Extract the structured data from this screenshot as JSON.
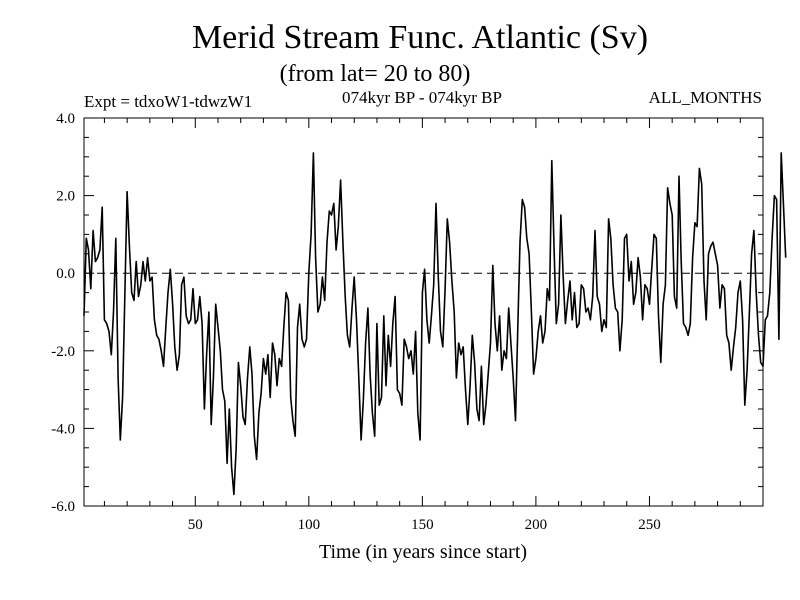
{
  "chart_data": {
    "type": "line",
    "title": "Merid Stream Func. Atlantic (Sv)",
    "subtitle": "(from lat= 20 to 80)",
    "annotations": {
      "experiment": "Expt = tdxoW1-tdwzW1",
      "period": "074kyr BP - 074kyr BP",
      "months": "ALL_MONTHS"
    },
    "xlabel": "Time (in years since start)",
    "ylabel": "",
    "xlim": [
      1,
      300
    ],
    "ylim": [
      -6.0,
      4.0
    ],
    "x_ticks": [
      50,
      100,
      150,
      200,
      250
    ],
    "x_tick_labels": [
      "50",
      "100",
      "150",
      "200",
      "250"
    ],
    "y_ticks": [
      -6.0,
      -4.0,
      -2.0,
      0.0,
      2.0,
      4.0
    ],
    "y_tick_labels": [
      "-6.0",
      "-4.0",
      "-2.0",
      "0.0",
      "2.0",
      "4.0"
    ],
    "reference_line": {
      "y": 0.0,
      "style": "dashed"
    },
    "series": [
      {
        "name": "Merid Stream Func. Atlantic",
        "x_start": 1,
        "x_step": 1,
        "values": [
          -1.1,
          0.9,
          0.6,
          -0.4,
          1.1,
          0.3,
          0.4,
          0.6,
          1.7,
          -1.2,
          -1.3,
          -1.5,
          -2.1,
          -1.0,
          0.9,
          -2.7,
          -4.3,
          -3.2,
          -0.5,
          2.1,
          0.7,
          -0.5,
          -0.7,
          0.3,
          -0.6,
          -0.3,
          0.3,
          -0.2,
          0.4,
          -0.2,
          -0.1,
          -1.2,
          -1.6,
          -1.7,
          -2.0,
          -2.4,
          -1.4,
          -0.5,
          0.1,
          -0.8,
          -1.9,
          -2.5,
          -2.1,
          -0.3,
          -0.1,
          -1.1,
          -1.3,
          -1.2,
          -0.4,
          -1.3,
          -1.2,
          -0.6,
          -1.3,
          -3.5,
          -2.1,
          -1.0,
          -3.9,
          -2.7,
          -0.8,
          -1.4,
          -2.0,
          -3.0,
          -3.3,
          -4.9,
          -3.5,
          -5.0,
          -5.7,
          -4.5,
          -2.3,
          -2.9,
          -3.7,
          -3.9,
          -2.7,
          -1.9,
          -2.6,
          -4.2,
          -4.8,
          -3.6,
          -3.1,
          -2.2,
          -2.6,
          -2.1,
          -3.2,
          -1.8,
          -2.1,
          -2.9,
          -2.2,
          -2.4,
          -1.4,
          -0.5,
          -0.7,
          -3.2,
          -3.8,
          -4.2,
          -1.4,
          -0.8,
          -1.7,
          -1.9,
          -1.7,
          0.0,
          1.0,
          3.1,
          0.4,
          -1.0,
          -0.8,
          -0.1,
          -0.7,
          0.8,
          1.6,
          1.5,
          1.8,
          0.6,
          1.2,
          2.4,
          0.8,
          -0.6,
          -1.6,
          -1.9,
          -0.9,
          -0.1,
          -1.2,
          -2.7,
          -4.3,
          -3.3,
          -1.8,
          -0.9,
          -2.6,
          -3.6,
          -4.2,
          -1.3,
          -3.4,
          -3.2,
          -1.1,
          -2.9,
          -1.6,
          -2.4,
          -1.3,
          -0.6,
          -3.0,
          -3.1,
          -3.4,
          -1.7,
          -1.9,
          -2.2,
          -2.0,
          -2.6,
          -1.5,
          -3.6,
          -4.3,
          -0.5,
          0.1,
          -1.2,
          -1.8,
          -1.1,
          -0.3,
          1.8,
          -0.1,
          -1.5,
          -1.9,
          -0.4,
          1.4,
          0.8,
          -0.2,
          -1.0,
          -2.7,
          -1.8,
          -2.1,
          -1.9,
          -3.0,
          -3.9,
          -2.9,
          -1.6,
          -2.3,
          -3.5,
          -3.8,
          -2.4,
          -3.9,
          -3.4,
          -2.6,
          -1.8,
          0.2,
          -1.3,
          -2.0,
          -1.1,
          -2.5,
          -2.0,
          -2.2,
          -0.9,
          -1.8,
          -2.7,
          -3.8,
          -1.5,
          0.8,
          1.9,
          1.7,
          0.9,
          0.5,
          -1.0,
          -2.6,
          -2.2,
          -1.5,
          -1.1,
          -1.8,
          -1.5,
          -0.4,
          -0.7,
          2.9,
          0.6,
          -1.3,
          -0.8,
          1.5,
          -0.1,
          -1.3,
          -0.7,
          -0.2,
          -1.2,
          -0.5,
          -1.4,
          -1.3,
          -0.3,
          -0.4,
          -1.0,
          -0.9,
          -1.2,
          -0.6,
          1.1,
          -0.6,
          -0.8,
          -1.5,
          -1.2,
          -1.4,
          1.4,
          0.9,
          -0.3,
          -0.9,
          -1.0,
          -2.0,
          -1.2,
          0.9,
          1.0,
          -0.2,
          0.3,
          -0.8,
          -0.5,
          0.4,
          -0.1,
          -1.2,
          -0.3,
          -0.4,
          -0.8,
          0.1,
          1.0,
          0.9,
          -1.1,
          -2.3,
          -0.8,
          -0.3,
          2.2,
          1.8,
          1.5,
          -0.6,
          -0.9,
          2.5,
          0.3,
          -1.3,
          -1.4,
          -1.6,
          -1.3,
          0.4,
          1.3,
          1.2,
          2.7,
          2.3,
          -0.2,
          -1.2,
          0.5,
          0.7,
          0.8,
          0.5,
          0.2,
          -0.9,
          -0.3,
          -0.4,
          -1.6,
          -1.8,
          -2.5,
          -1.9,
          -1.4,
          -0.5,
          -0.2,
          -1.2,
          -3.4,
          -2.5,
          -1.0,
          0.5,
          1.1,
          -0.5,
          -1.6,
          -2.3,
          -2.4,
          -1.2,
          -1.1,
          -0.5,
          0.9,
          2.0,
          1.9,
          -1.7,
          3.1,
          1.8,
          0.4
        ]
      }
    ]
  }
}
